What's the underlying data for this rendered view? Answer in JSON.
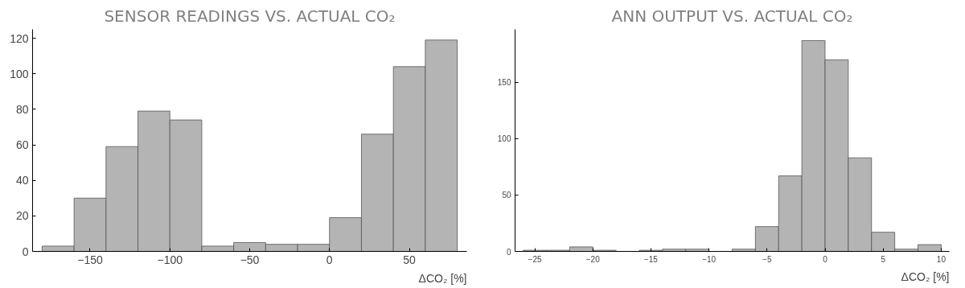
{
  "chart_data": [
    {
      "type": "histogram",
      "title": "SENSOR READINGS VS. ACTUAL CO₂",
      "xlabel": "ΔCO₂ [%]",
      "color": "#b4b4b4",
      "bins": [
        -180,
        -160,
        -140,
        -120,
        -100,
        -80,
        -60,
        -40,
        -20,
        0,
        20,
        40,
        60,
        80
      ],
      "values": [
        3,
        30,
        59,
        79,
        74,
        3,
        5,
        4,
        4,
        19,
        66,
        104,
        119
      ],
      "xlim": [
        -186,
        86
      ],
      "ylim": [
        0,
        125
      ],
      "xticks": [
        -150,
        -100,
        -50,
        0,
        50
      ],
      "yticks": [
        0,
        20,
        40,
        60,
        80,
        100,
        120
      ],
      "grid": false
    },
    {
      "type": "histogram",
      "title": "ANN OUTPUT VS. ACTUAL CO₂",
      "xlabel": "ΔCO₂ [%]",
      "color": "#b4b4b4",
      "bins": [
        -26,
        -24,
        -22,
        -20,
        -18,
        -16,
        -14,
        -12,
        -10,
        -8,
        -6,
        -4,
        -2,
        0,
        2,
        4,
        6,
        8,
        10
      ],
      "values": [
        1,
        1,
        4,
        1,
        0,
        1,
        2,
        2,
        0,
        2,
        22,
        67,
        187,
        170,
        83,
        17,
        2,
        6
      ],
      "xlim": [
        -26.7,
        10.7
      ],
      "ylim": [
        0,
        197
      ],
      "xticks": [
        -25,
        -20,
        -15,
        -10,
        -5,
        0,
        5,
        10
      ],
      "yticks": [
        0,
        50,
        100,
        150
      ],
      "grid": false
    }
  ]
}
